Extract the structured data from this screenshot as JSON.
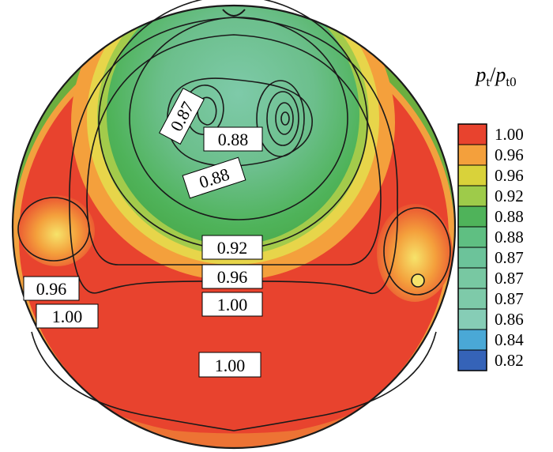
{
  "chart_data": {
    "type": "contour",
    "title": "",
    "colorbar": {
      "label_main": "p",
      "label_sub_1": "t",
      "label_sep": "/",
      "label_main_2": "p",
      "label_sub_2": "t0",
      "levels": [
        "1.00",
        "0.96",
        "0.96",
        "0.92",
        "0.88",
        "0.88",
        "0.87",
        "0.87",
        "0.87",
        "0.86",
        "0.84",
        "0.82"
      ],
      "colors": [
        "#e8432e",
        "#f4a03c",
        "#d9d23a",
        "#9ecb4a",
        "#4fb35a",
        "#5fbf82",
        "#6cc39a",
        "#78c8a2",
        "#7ecaa9",
        "#86cdb6",
        "#4aa8d6",
        "#3563b8"
      ]
    },
    "contour_labels": [
      {
        "text": "0.87",
        "region": "upper-left vortex",
        "rotation": -62
      },
      {
        "text": "0.88",
        "region": "upper center"
      },
      {
        "text": "0.88",
        "region": "upper center, below",
        "rotation": -18
      },
      {
        "text": "0.92",
        "region": "center"
      },
      {
        "text": "0.96",
        "region": "center"
      },
      {
        "text": "1.00",
        "region": "center"
      },
      {
        "text": "0.96",
        "region": "left"
      },
      {
        "text": "1.00",
        "region": "left"
      },
      {
        "text": "1.00",
        "region": "lower center"
      }
    ]
  }
}
